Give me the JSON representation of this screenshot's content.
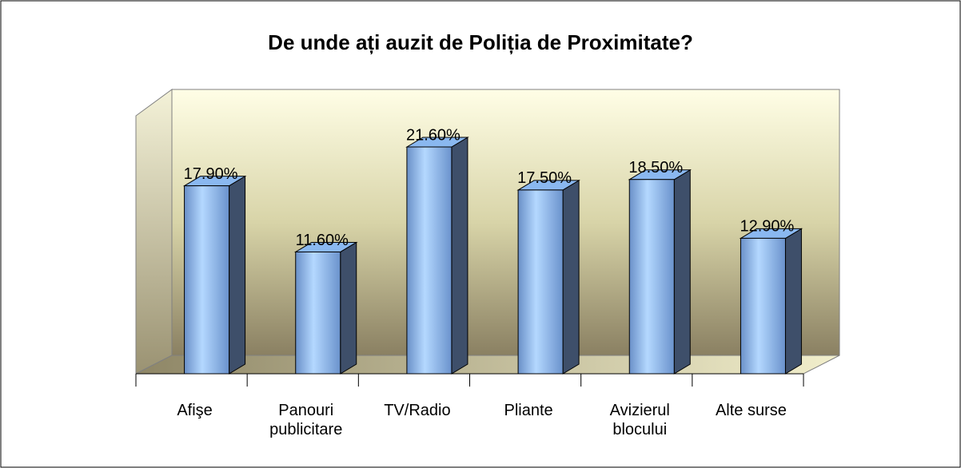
{
  "chart_data": {
    "type": "bar3d",
    "title": "De unde ați auzit de Poliția de Proximitate?",
    "categories": [
      "Afişe",
      "Panouri publicitare",
      "TV/Radio",
      "Pliante",
      "Avizierul blocului",
      "Alte surse"
    ],
    "values": [
      17.9,
      11.6,
      21.6,
      17.5,
      18.5,
      12.9
    ],
    "value_labels": [
      "17.90%",
      "11.60%",
      "21.60%",
      "17.50%",
      "18.50%",
      "12.90%"
    ],
    "color": "#8ab8f0"
  }
}
